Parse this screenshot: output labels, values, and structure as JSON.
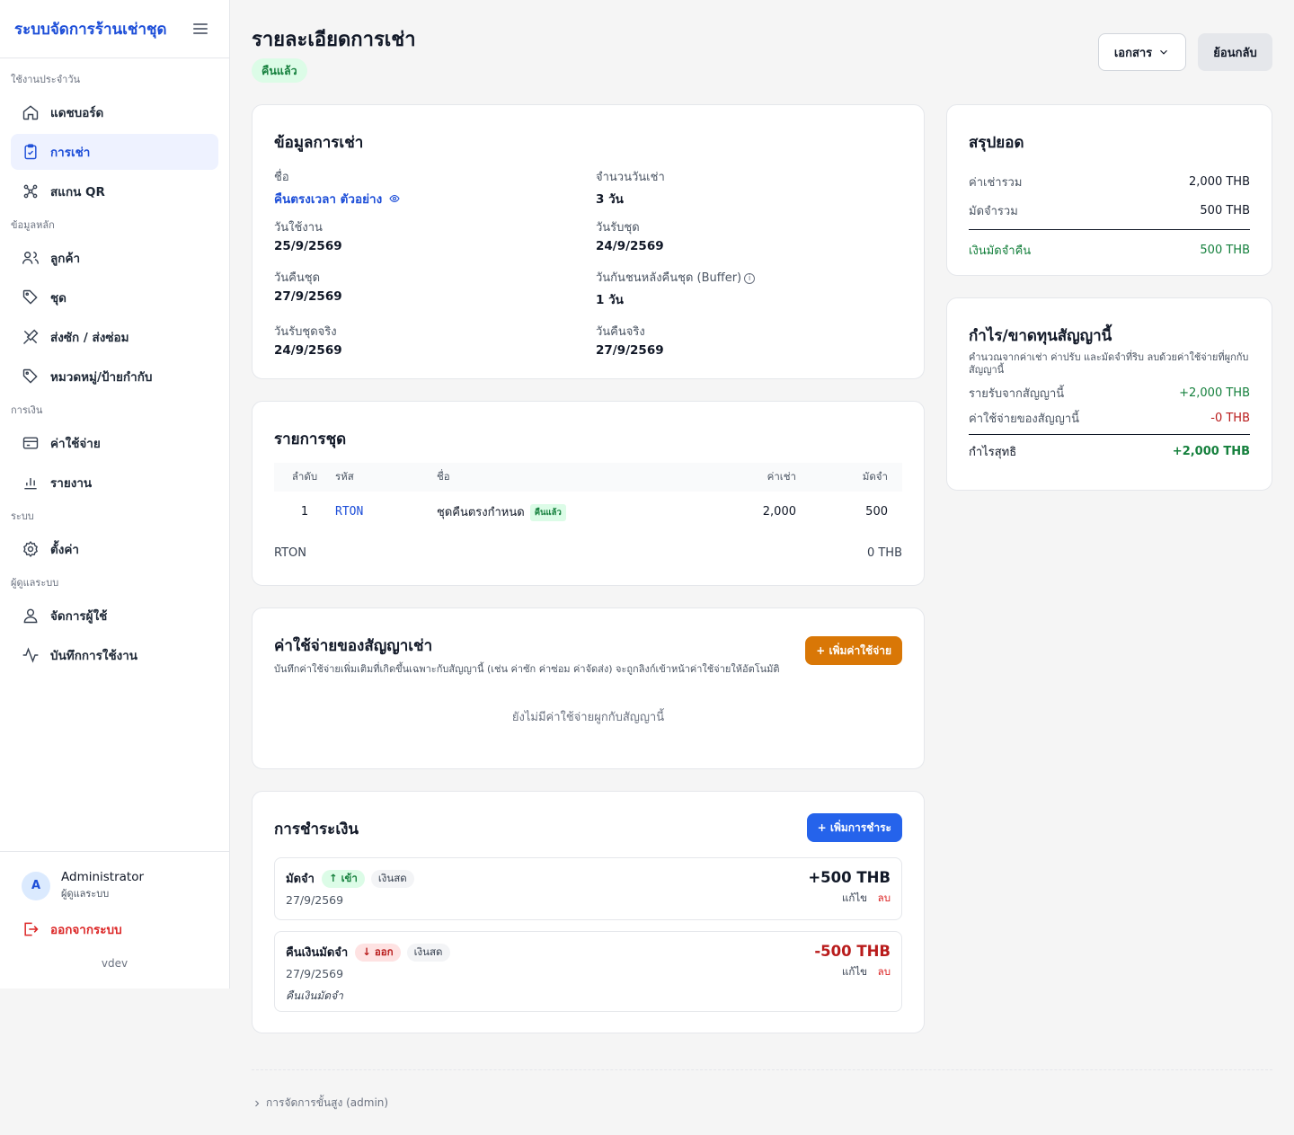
{
  "sidebar": {
    "brand": "ระบบจัดการร้านเช่าชุด",
    "sections": [
      {
        "title": "ใช้งานประจำวัน",
        "items": [
          "แดชบอร์ด",
          "การเช่า",
          "สแกน QR"
        ]
      },
      {
        "title": "ข้อมูลหลัก",
        "items": [
          "ลูกค้า",
          "ชุด",
          "ส่งซัก / ส่งซ่อม",
          "หมวดหมู่/ป้ายกำกับ"
        ]
      },
      {
        "title": "การเงิน",
        "items": [
          "ค่าใช้จ่าย",
          "รายงาน"
        ]
      },
      {
        "title": "ระบบ",
        "items": [
          "ตั้งค่า"
        ]
      },
      {
        "title": "ผู้ดูแลระบบ",
        "items": [
          "จัดการผู้ใช้",
          "บันทึกการใช้งาน"
        ]
      }
    ],
    "active_item": "การเช่า",
    "user": {
      "initial": "A",
      "name": "Administrator",
      "role": "ผู้ดูแลระบบ"
    },
    "logout": "ออกจากระบบ",
    "version": "vdev"
  },
  "header": {
    "title": "รายละเอียดการเช่า",
    "status": "คืนแล้ว",
    "docs_button": "เอกสาร",
    "back_button": "ย้อนกลับ"
  },
  "info": {
    "title": "ข้อมูลการเช่า",
    "name_label": "ชื่อ",
    "name_value": "คืนตรงเวลา ตัวอย่าง",
    "rental_days_label": "จำนวนวันเช่า",
    "rental_days_value": "3 วัน",
    "use_date_label": "วันใช้งาน",
    "use_date_value": "25/9/2569",
    "pickup_label": "วันรับชุด",
    "pickup_value": "24/9/2569",
    "return_label": "วันคืนชุด",
    "return_value": "27/9/2569",
    "buffer_label": "วันกันชนหลังคืนชุด (Buffer)",
    "buffer_value": "1 วัน",
    "actual_pickup_label": "วันรับชุดจริง",
    "actual_pickup_value": "24/9/2569",
    "actual_return_label": "วันคืนจริง",
    "actual_return_value": "27/9/2569"
  },
  "items": {
    "title": "รายการชุด",
    "columns": [
      "ลำดับ",
      "รหัส",
      "ชื่อ",
      "ค่าเช่า",
      "มัดจำ"
    ],
    "rows": [
      {
        "no": "1",
        "code": "RTON",
        "name": "ชุดคืนตรงกำหนด",
        "badge": "คืนแล้ว",
        "rent": "2,000",
        "deposit": "500"
      }
    ],
    "footer_left": "RTON",
    "footer_right": "0 THB"
  },
  "expenses": {
    "title": "ค่าใช้จ่ายของสัญญาเช่า",
    "subtitle": "บันทึกค่าใช้จ่ายเพิ่มเติมที่เกิดขึ้นเฉพาะกับสัญญานี้ (เช่น ค่าซัก ค่าซ่อม ค่าจัดส่ง) จะถูกลิงก์เข้าหน้าค่าใช้จ่ายให้อัตโนมัติ",
    "add_button": "+ เพิ่มค่าใช้จ่าย",
    "empty": "ยังไม่มีค่าใช้จ่ายผูกกับสัญญานี้"
  },
  "payments": {
    "title": "การชำระเงิน",
    "add_button": "+ เพิ่มการชำระ",
    "list": [
      {
        "title": "มัดจำ",
        "direction": "↑ เข้า",
        "method": "เงินสด",
        "date": "27/9/2569",
        "note": "",
        "amount": "+500 THB",
        "edit": "แก้ไข",
        "delete": "ลบ"
      },
      {
        "title": "คืนเงินมัดจำ",
        "direction": "↓ ออก",
        "method": "เงินสด",
        "date": "27/9/2569",
        "note": "คืนเงินมัดจำ",
        "amount": "-500 THB",
        "edit": "แก้ไข",
        "delete": "ลบ"
      }
    ]
  },
  "summary": {
    "title": "สรุปยอด",
    "rent_total_label": "ค่าเช่ารวม",
    "rent_total_value": "2,000 THB",
    "deposit_total_label": "มัดจำรวม",
    "deposit_total_value": "500 THB",
    "refund_label": "เงินมัดจำคืน",
    "refund_value": "500 THB"
  },
  "profit": {
    "title": "กำไร/ขาดทุนสัญญานี้",
    "subtitle": "คำนวณจากค่าเช่า ค่าปรับ และมัดจำที่ริบ ลบด้วยค่าใช้จ่ายที่ผูกกับสัญญานี้",
    "income_label": "รายรับจากสัญญานี้",
    "income_value": "+2,000 THB",
    "expense_label": "ค่าใช้จ่ายของสัญญานี้",
    "expense_value": "-0 THB",
    "net_label": "กำไรสุทธิ",
    "net_value": "+2,000 THB"
  },
  "footer": {
    "admin_link": "การจัดการขั้นสูง (admin)"
  },
  "colors": {
    "primary": "#1d4ed8",
    "success": "#15803d",
    "danger": "#b91c1c",
    "orange": "#d97706"
  }
}
